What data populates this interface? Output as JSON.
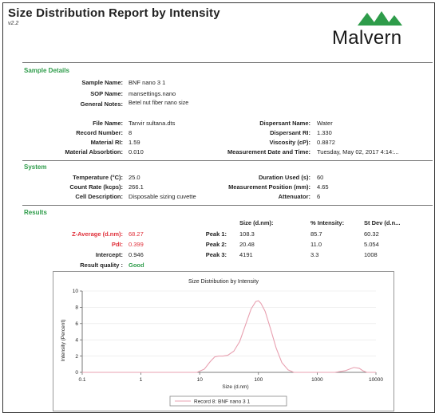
{
  "header": {
    "title": "Size Distribution Report by Intensity",
    "version": "v2.2",
    "logo_text": "Malvern"
  },
  "sample_details": {
    "section_title": "Sample Details",
    "sample_name_label": "Sample Name:",
    "sample_name": "BNF  nano 3 1",
    "sop_name_label": "SOP Name:",
    "sop_name": "mansettings.nano",
    "general_notes_label": "General Notes:",
    "general_notes": "Betel nut fiber nano size",
    "file_name_label": "File Name:",
    "file_name": "Tanvir sultana.dts",
    "record_number_label": "Record Number:",
    "record_number": "8",
    "material_ri_label": "Material RI:",
    "material_ri": "1.59",
    "material_absorbtion_label": "Material Absorbtion:",
    "material_absorbtion": "0.010",
    "dispersant_name_label": "Dispersant Name:",
    "dispersant_name": "Water",
    "dispersant_ri_label": "Dispersant RI:",
    "dispersant_ri": "1.330",
    "viscosity_label": "Viscosity (cP):",
    "viscosity": "0.8872",
    "measurement_datetime_label": "Measurement Date and Time:",
    "measurement_datetime": "Tuesday, May 02, 2017 4:14:..."
  },
  "system": {
    "section_title": "System",
    "temperature_label": "Temperature (°C):",
    "temperature": "25.0",
    "count_rate_label": "Count Rate (kcps):",
    "count_rate": "266.1",
    "cell_description_label": "Cell Description:",
    "cell_description": "Disposable sizing cuvette",
    "duration_label": "Duration Used (s):",
    "duration": "60",
    "measurement_position_label": "Measurement Position (mm):",
    "measurement_position": "4.65",
    "attenuator_label": "Attenuator:",
    "attenuator": "6"
  },
  "results": {
    "section_title": "Results",
    "col_size": "Size (d.nm):",
    "col_intensity": "% Intensity:",
    "col_stdev": "St Dev (d.n...",
    "z_average_label": "Z-Average (d.nm):",
    "z_average": "68.27",
    "pdi_label": "PdI:",
    "pdi": "0.399",
    "intercept_label": "Intercept:",
    "intercept": "0.946",
    "result_quality_label": "Result quality :",
    "result_quality": "Good",
    "peaks": [
      {
        "label": "Peak 1:",
        "size": "108.3",
        "intensity": "85.7",
        "stdev": "60.32"
      },
      {
        "label": "Peak 2:",
        "size": "20.48",
        "intensity": "11.0",
        "stdev": "5.054"
      },
      {
        "label": "Peak 3:",
        "size": "4191",
        "intensity": "3.3",
        "stdev": "1008"
      }
    ]
  },
  "chart_data": {
    "type": "line",
    "title": "Size Distribution by Intensity",
    "xlabel": "Size (d.nm)",
    "ylabel": "Intensity (Percent)",
    "xscale": "log",
    "xlim": [
      0.1,
      10000
    ],
    "ylim": [
      0,
      10
    ],
    "xticks": [
      0.1,
      1,
      10,
      100,
      1000,
      10000
    ],
    "xtick_labels": [
      "0.1",
      "1",
      "10",
      "100",
      "1000",
      "10000"
    ],
    "yticks": [
      0,
      2,
      4,
      6,
      8,
      10
    ],
    "ytick_labels": [
      "0",
      "2",
      "4",
      "6",
      "8",
      "10"
    ],
    "line_color": "#e8a0b0",
    "legend_placement": "bottom-center",
    "series": [
      {
        "name": "Record 8: BNF  nano 3 1",
        "x": [
          0.1,
          5,
          9,
          12,
          15,
          18,
          21,
          25,
          30,
          38,
          48,
          60,
          75,
          90,
          100,
          110,
          130,
          160,
          200,
          250,
          320,
          400,
          500,
          1000,
          2000,
          3000,
          4200,
          5200,
          6000,
          7000,
          10000
        ],
        "y": [
          0,
          0,
          0,
          0.4,
          1.3,
          1.9,
          2.0,
          2.0,
          2.1,
          2.6,
          3.8,
          5.8,
          7.8,
          8.7,
          8.8,
          8.5,
          7.5,
          5.4,
          3.0,
          1.2,
          0.3,
          0,
          0,
          0,
          0,
          0.2,
          0.6,
          0.5,
          0.2,
          0,
          0
        ]
      }
    ]
  }
}
